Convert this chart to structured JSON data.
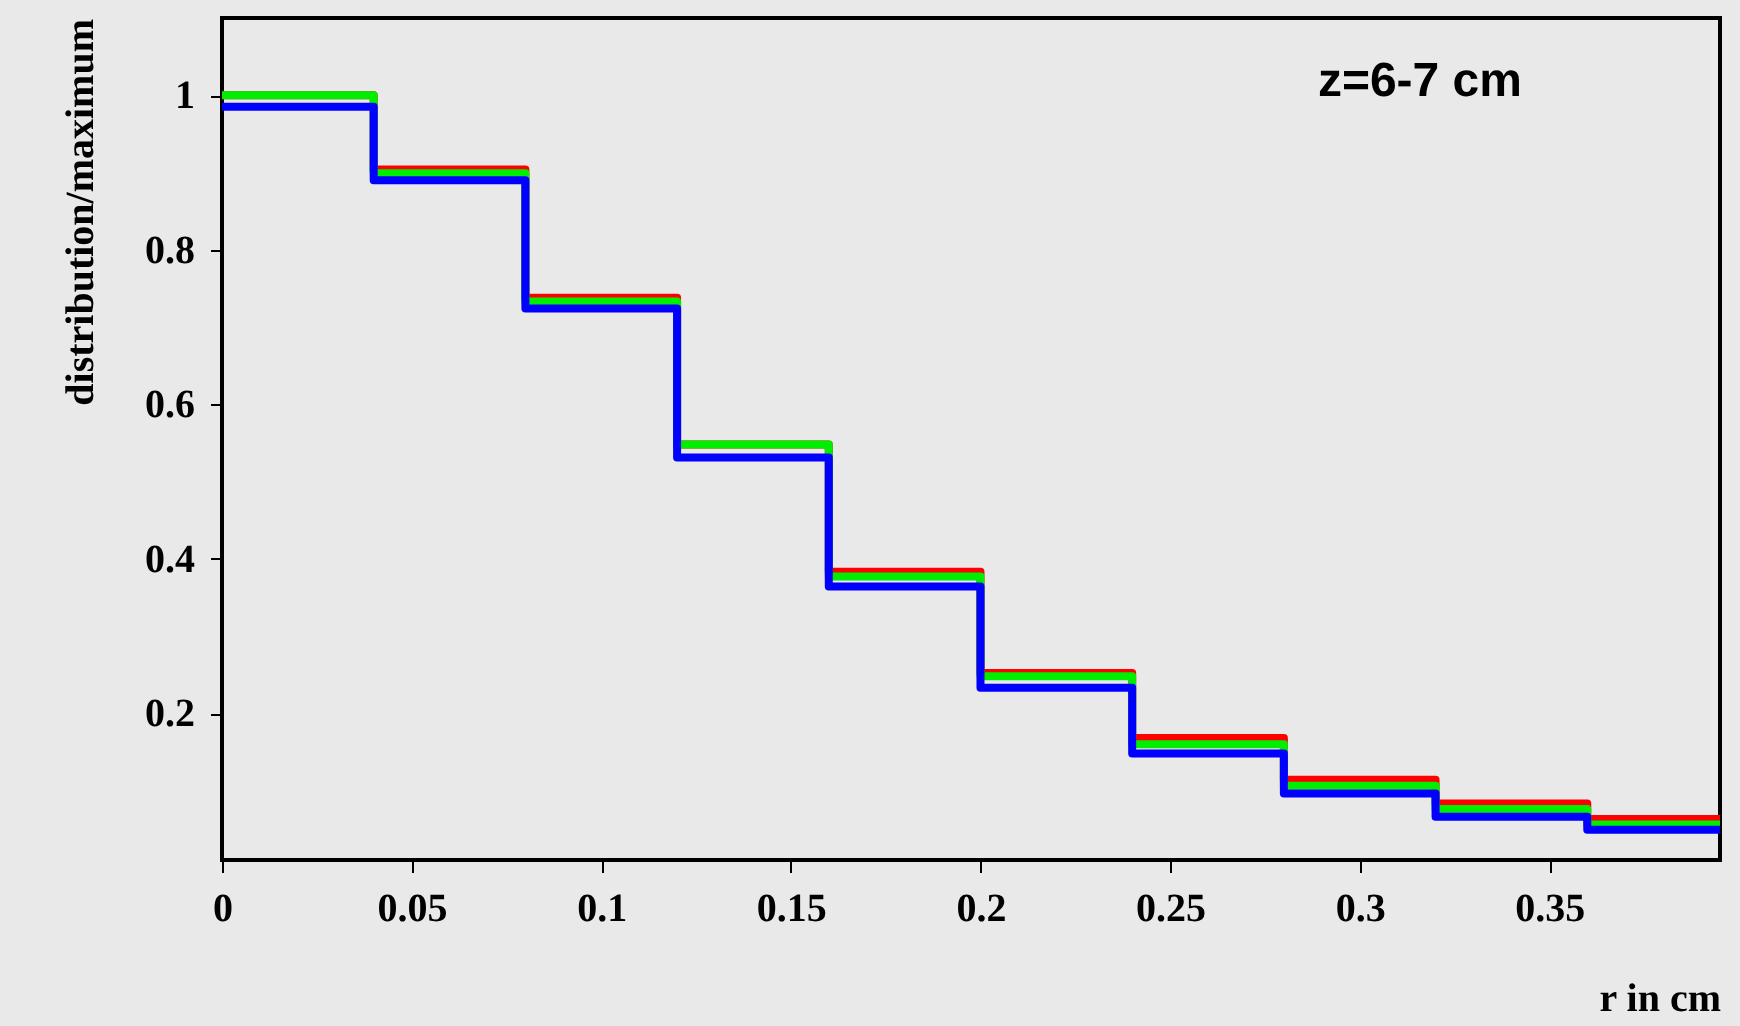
{
  "chart_data": {
    "type": "histogram",
    "xlabel": "r in cm",
    "ylabel": "distribution/maximum",
    "annotations": [
      "z=6-7 cm"
    ],
    "bins": [
      0,
      0.04,
      0.08,
      0.12,
      0.16,
      0.2,
      0.24,
      0.28,
      0.32,
      0.36,
      0.395
    ],
    "series": [
      {
        "color": "#ff0000",
        "values": [
          1.0,
          0.904,
          0.738,
          0.548,
          0.383,
          0.252,
          0.168,
          0.114,
          0.083,
          0.063
        ]
      },
      {
        "color": "#00ee00",
        "values": [
          1.0,
          0.899,
          0.733,
          0.548,
          0.377,
          0.248,
          0.16,
          0.106,
          0.076,
          0.056
        ]
      },
      {
        "color": "#0000ff",
        "values": [
          0.985,
          0.89,
          0.724,
          0.531,
          0.364,
          0.233,
          0.148,
          0.096,
          0.066,
          0.049
        ]
      }
    ],
    "xlim": [
      0,
      0.395
    ],
    "ylim": [
      0.01,
      1.1
    ],
    "xticks": [
      0,
      0.05,
      0.1,
      0.15,
      0.2,
      0.25,
      0.3,
      0.35
    ],
    "yticks": [
      0.2,
      0.4,
      0.6,
      0.8,
      1
    ],
    "grid": false
  }
}
